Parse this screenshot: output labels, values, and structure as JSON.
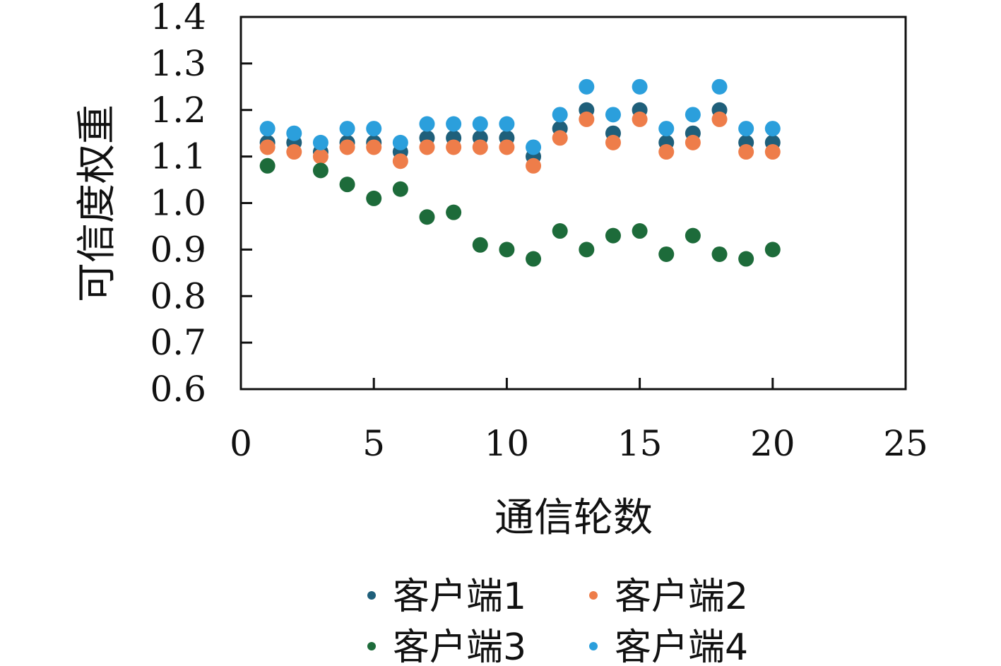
{
  "chart_data": {
    "type": "scatter",
    "title": "",
    "xlabel": "通信轮数",
    "ylabel": "可信度权重",
    "xlim": [
      0,
      25
    ],
    "ylim": [
      0.6,
      1.4
    ],
    "xticks": [
      "0",
      "5",
      "10",
      "15",
      "20",
      "25"
    ],
    "yticks": [
      "0.6",
      "0.7",
      "0.8",
      "0.9",
      "1.0",
      "1.1",
      "1.2",
      "1.3",
      "1.4"
    ],
    "grid": false,
    "legend_position": "bottom",
    "x": [
      1,
      2,
      3,
      4,
      5,
      6,
      7,
      8,
      9,
      10,
      11,
      12,
      13,
      14,
      15,
      16,
      17,
      18,
      19,
      20
    ],
    "series": [
      {
        "name": "客户端1",
        "color": "#1f5f7a",
        "values": [
          1.13,
          1.13,
          1.11,
          1.13,
          1.13,
          1.11,
          1.14,
          1.14,
          1.14,
          1.14,
          1.1,
          1.16,
          1.2,
          1.15,
          1.2,
          1.13,
          1.15,
          1.2,
          1.13,
          1.13
        ]
      },
      {
        "name": "客户端2",
        "color": "#ee7d4a",
        "values": [
          1.12,
          1.11,
          1.1,
          1.12,
          1.12,
          1.09,
          1.12,
          1.12,
          1.12,
          1.12,
          1.08,
          1.14,
          1.18,
          1.13,
          1.18,
          1.11,
          1.13,
          1.18,
          1.11,
          1.11
        ]
      },
      {
        "name": "客户端3",
        "color": "#1d6b3a",
        "values": [
          1.08,
          null,
          1.07,
          1.04,
          1.01,
          1.03,
          0.97,
          0.98,
          0.91,
          0.9,
          0.88,
          0.94,
          0.9,
          0.93,
          0.94,
          0.89,
          0.93,
          0.89,
          0.88,
          0.9
        ]
      },
      {
        "name": "客户端4",
        "color": "#2b9fdc",
        "values": [
          1.16,
          1.15,
          1.13,
          1.16,
          1.16,
          1.13,
          1.17,
          1.17,
          1.17,
          1.17,
          1.12,
          1.19,
          1.25,
          1.19,
          1.25,
          1.16,
          1.19,
          1.25,
          1.16,
          1.16
        ]
      }
    ]
  }
}
